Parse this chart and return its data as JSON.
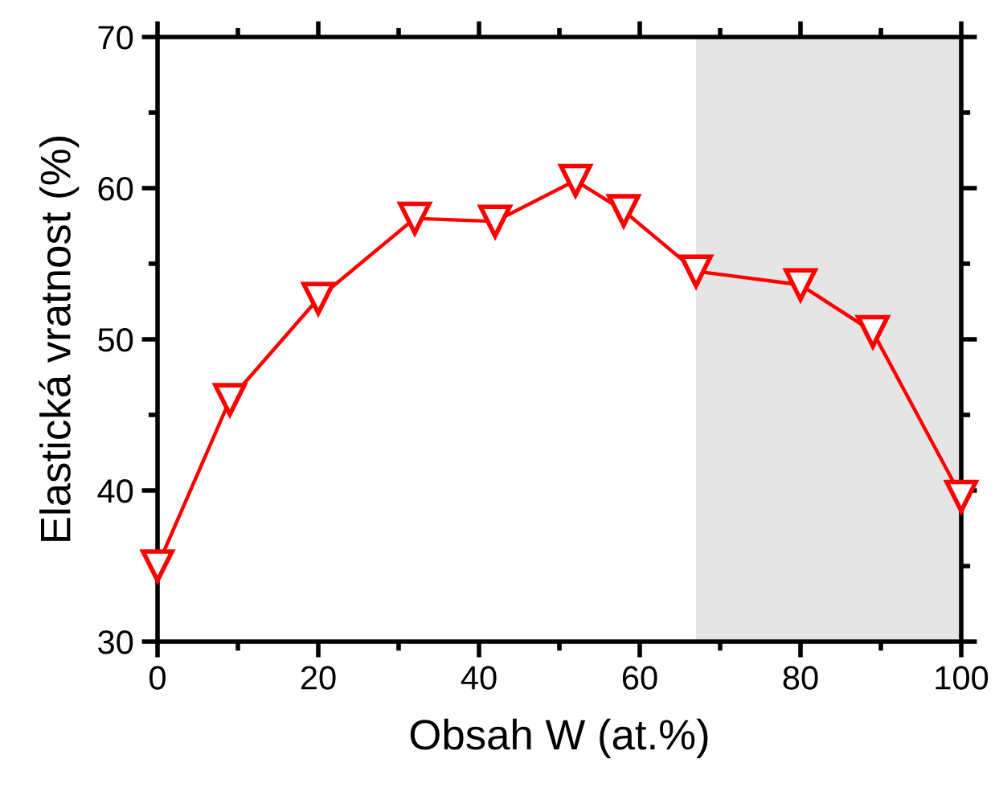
{
  "chart_data": {
    "type": "line",
    "xlabel": "Obsah W (at.%)",
    "ylabel": "Elastická vratnost (%)",
    "x": [
      0,
      9,
      20,
      32,
      42,
      52,
      58,
      67,
      80,
      89,
      100
    ],
    "series": [
      {
        "color": "#ff0000",
        "values": [
          35.0,
          46.0,
          52.7,
          58.0,
          57.8,
          60.5,
          58.5,
          54.5,
          53.6,
          50.5,
          39.6
        ]
      }
    ],
    "marker": "triangle",
    "line_style": "solid",
    "xlim": [
      0,
      100
    ],
    "xticks": [
      0,
      20,
      40,
      60,
      80,
      100
    ],
    "ylim": [
      30,
      70
    ],
    "yticks": [
      30,
      40,
      50,
      60,
      70
    ],
    "bands": [
      {
        "axis": "x",
        "from": 67,
        "to": 100,
        "color": "#e5e5e5"
      }
    ],
    "grid": false,
    "legend": false
  }
}
